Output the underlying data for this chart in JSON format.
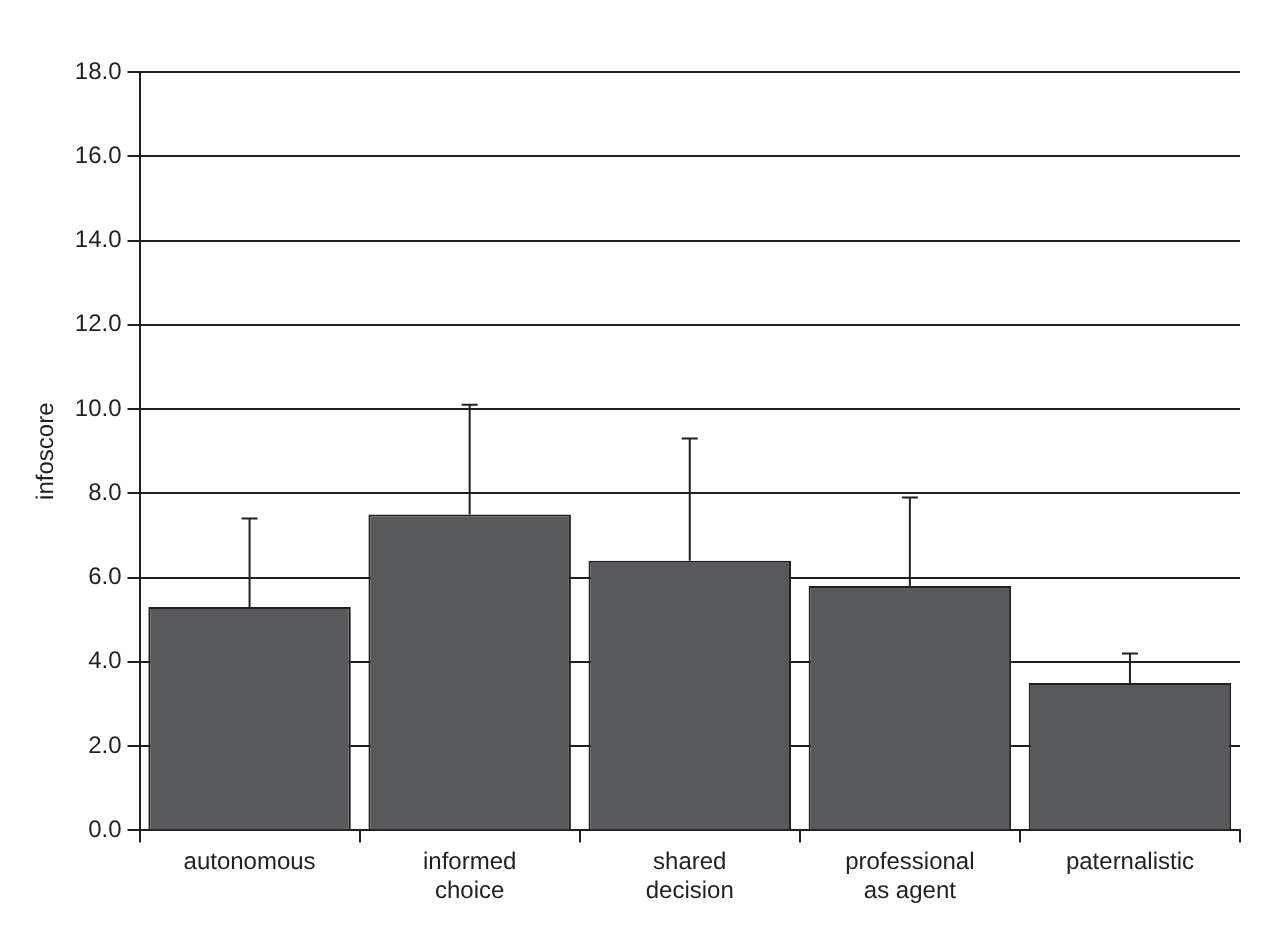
{
  "chart_data": {
    "type": "bar",
    "ylabel": "infoscore",
    "categories": [
      "autonomous",
      "informed choice",
      "shared decision",
      "professional as agent",
      "paternalistic"
    ],
    "values": [
      5.3,
      7.5,
      6.4,
      5.8,
      3.5
    ],
    "errors": [
      [
        5.3,
        7.4
      ],
      [
        7.5,
        10.1
      ],
      [
        6.4,
        9.3
      ],
      [
        5.8,
        7.9
      ],
      [
        3.5,
        4.2
      ]
    ],
    "color": "#58595b",
    "ylim": [
      0,
      18
    ],
    "yticks": [
      {
        "value": 0,
        "label": "0.0"
      },
      {
        "value": 2,
        "label": "2.0"
      },
      {
        "value": 4,
        "label": "4.0"
      },
      {
        "value": 6,
        "label": "6.0"
      },
      {
        "value": 8,
        "label": "8.0"
      },
      {
        "value": 10,
        "label": "10.0"
      },
      {
        "value": 12,
        "label": "12.0"
      },
      {
        "value": 14,
        "label": "14.0"
      },
      {
        "value": 16,
        "label": "16.0"
      },
      {
        "value": 18,
        "label": "18.0"
      }
    ],
    "grid": "y",
    "legend": false
  }
}
